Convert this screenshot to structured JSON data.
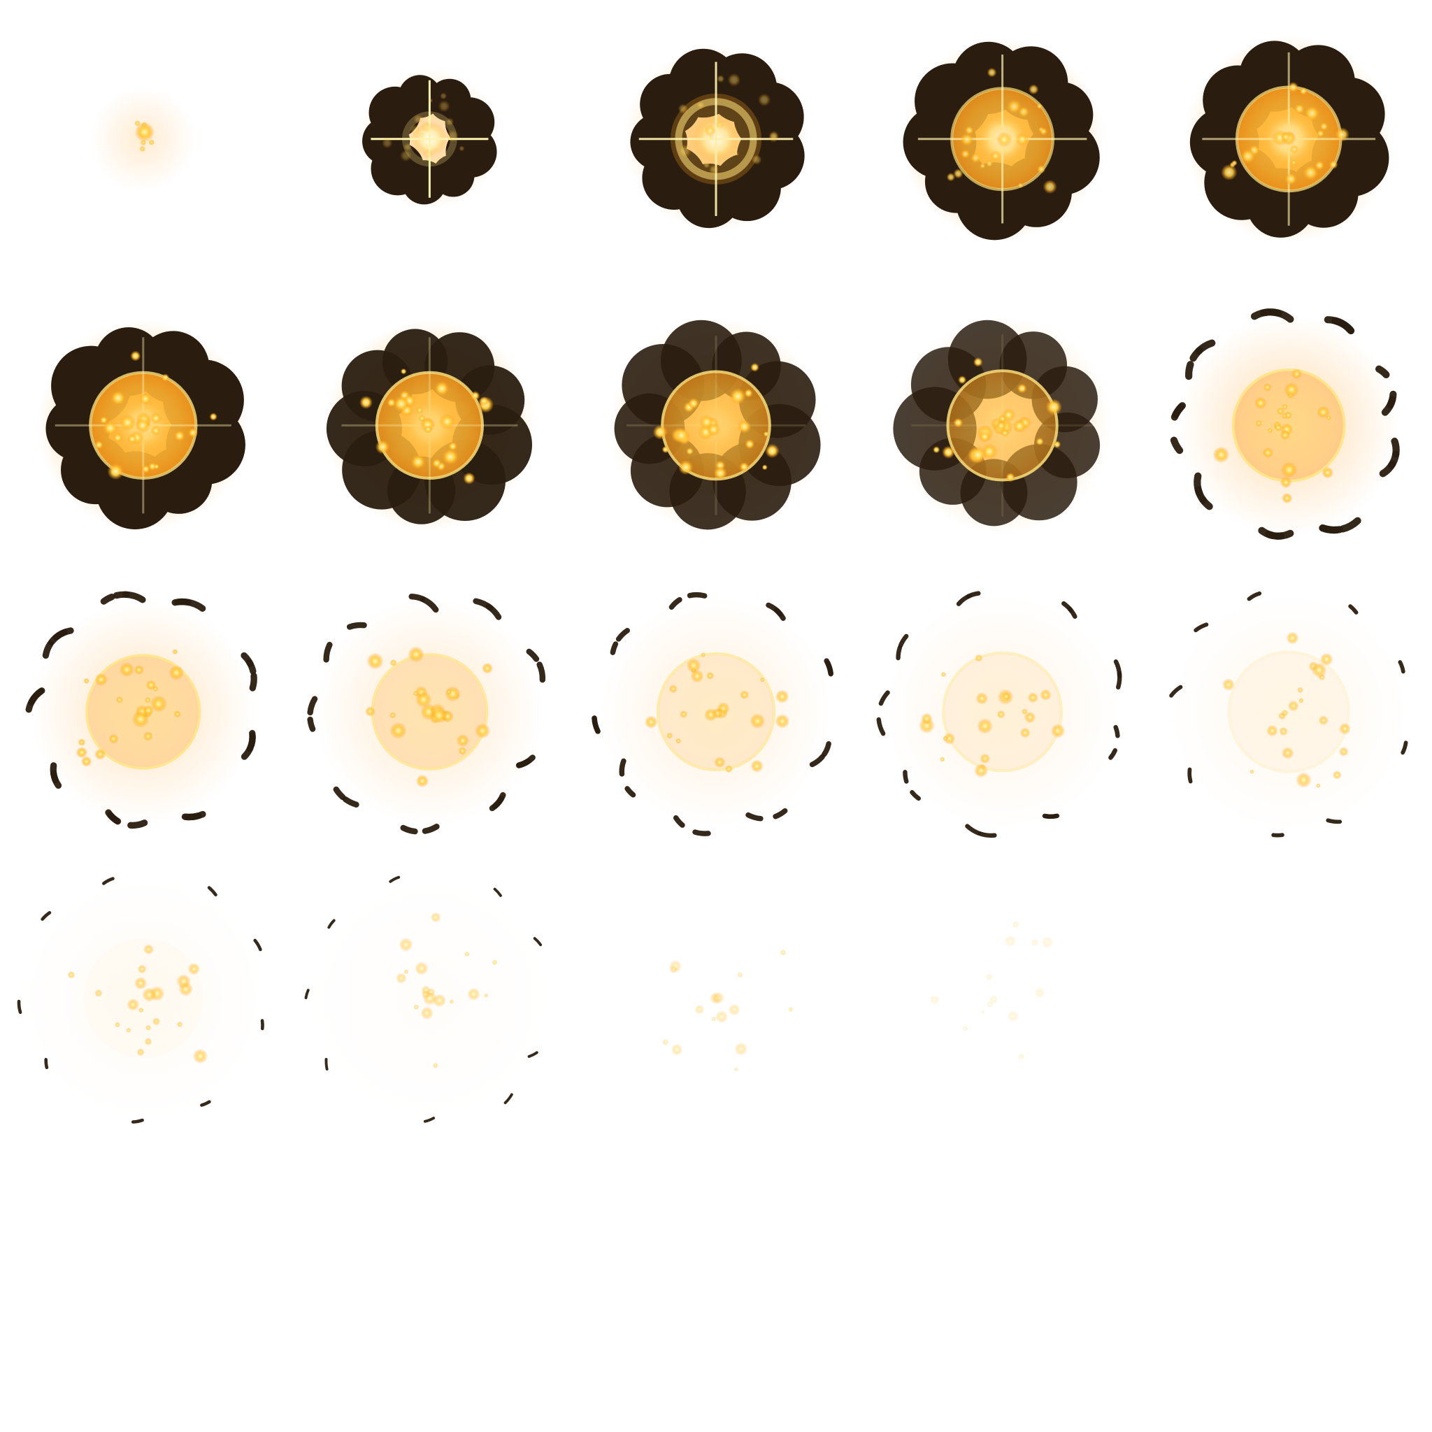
{
  "sprite_sheet": {
    "grid": {
      "columns": 5,
      "rows": 5
    },
    "frame_count": 19,
    "frames": [
      {
        "index": 1,
        "stage": "spark",
        "smoke": 0,
        "core": 0,
        "ring": 0,
        "glow": 0.25,
        "sparks": 0.9,
        "flash": 0
      },
      {
        "index": 2,
        "stage": "flash",
        "smoke": 1,
        "core": 0,
        "ring": 0.25,
        "glow": 0.6,
        "sparks": 0.3,
        "flash": 1
      },
      {
        "index": 3,
        "stage": "ring-expand",
        "smoke": 1,
        "core": 0.25,
        "ring": 0.55,
        "glow": 0.8,
        "sparks": 0.4,
        "flash": 0.9
      },
      {
        "index": 4,
        "stage": "fireball",
        "smoke": 1,
        "core": 0.85,
        "ring": 0.7,
        "glow": 1,
        "sparks": 0.8,
        "flash": 0.7
      },
      {
        "index": 5,
        "stage": "fireball",
        "smoke": 1,
        "core": 0.9,
        "ring": 0.75,
        "glow": 1,
        "sparks": 0.9,
        "flash": 0.6
      },
      {
        "index": 6,
        "stage": "peak",
        "smoke": 1,
        "core": 0.9,
        "ring": 0.8,
        "glow": 1,
        "sparks": 1,
        "flash": 0.4
      },
      {
        "index": 7,
        "stage": "peak",
        "smoke": 0.95,
        "core": 0.85,
        "ring": 0.85,
        "glow": 0.95,
        "sparks": 1,
        "flash": 0.3
      },
      {
        "index": 8,
        "stage": "cooling",
        "smoke": 0.9,
        "core": 0.7,
        "ring": 0.85,
        "glow": 0.8,
        "sparks": 1,
        "flash": 0.15
      },
      {
        "index": 9,
        "stage": "cooling",
        "smoke": 0.85,
        "core": 0.55,
        "ring": 0.85,
        "glow": 0.6,
        "sparks": 1,
        "flash": 0.1
      },
      {
        "index": 10,
        "stage": "cooling",
        "smoke": 0.8,
        "core": 0.42,
        "ring": 0.8,
        "glow": 0.45,
        "sparks": 0.95,
        "flash": 0
      },
      {
        "index": 11,
        "stage": "dissipating",
        "smoke": 0.7,
        "core": 0.32,
        "ring": 0.75,
        "glow": 0.35,
        "sparks": 0.95,
        "flash": 0
      },
      {
        "index": 12,
        "stage": "dissipating",
        "smoke": 0.6,
        "core": 0.24,
        "ring": 0.65,
        "glow": 0.28,
        "sparks": 0.9,
        "flash": 0
      },
      {
        "index": 13,
        "stage": "dissipating",
        "smoke": 0.5,
        "core": 0.16,
        "ring": 0.55,
        "glow": 0.2,
        "sparks": 0.85,
        "flash": 0
      },
      {
        "index": 14,
        "stage": "dissipating",
        "smoke": 0.38,
        "core": 0.1,
        "ring": 0.4,
        "glow": 0.14,
        "sparks": 0.8,
        "flash": 0
      },
      {
        "index": 15,
        "stage": "dissipating",
        "smoke": 0.3,
        "core": 0.06,
        "ring": 0.2,
        "glow": 0.1,
        "sparks": 0.75,
        "flash": 0
      },
      {
        "index": 16,
        "stage": "embers",
        "smoke": 0.18,
        "core": 0.03,
        "ring": 0,
        "glow": 0.06,
        "sparks": 0.7,
        "flash": 0
      },
      {
        "index": 17,
        "stage": "embers",
        "smoke": 0.1,
        "core": 0,
        "ring": 0,
        "glow": 0.03,
        "sparks": 0.55,
        "flash": 0
      },
      {
        "index": 18,
        "stage": "embers",
        "smoke": 0,
        "core": 0,
        "ring": 0,
        "glow": 0,
        "sparks": 0.4,
        "flash": 0
      },
      {
        "index": 19,
        "stage": "embers",
        "smoke": 0,
        "core": 0,
        "ring": 0,
        "glow": 0,
        "sparks": 0.2,
        "flash": 0
      }
    ]
  },
  "colors": {
    "background": "#ffffff",
    "smoke": "#2a1d10",
    "smoke_edge": "#5a3c1c",
    "core": "#ffb12e",
    "core_center": "#ffd35a",
    "ring": "#ffe27a",
    "glow": "#ff9a1a",
    "spark": "#ffcf40",
    "spark_hot": "#fff3b0",
    "flash": "#ffffff"
  }
}
